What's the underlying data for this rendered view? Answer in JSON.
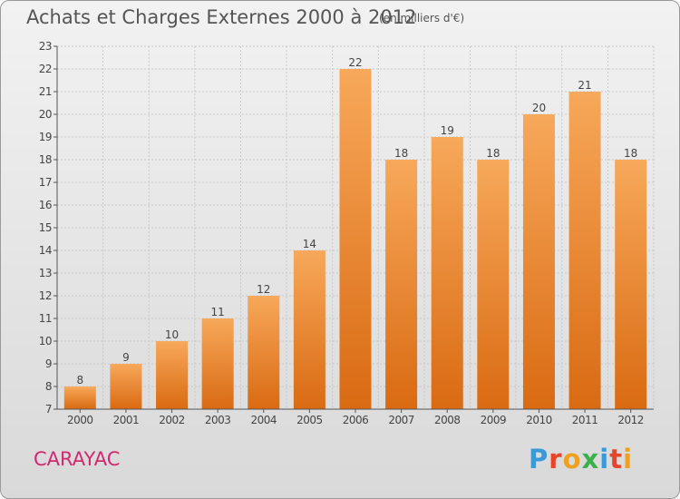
{
  "header": {
    "title": "Achats et Charges Externes 2000 à 2012",
    "subtitle": "(en milliers d'€)"
  },
  "footer": {
    "commune": "CARAYAC",
    "logo_text": "Proxiti",
    "logo_colors": [
      "#3a9ad9",
      "#e8462a",
      "#f0a020",
      "#3bb14a",
      "#3a9ad9",
      "#e8462a",
      "#f0a020"
    ]
  },
  "colors": {
    "bar_light": "#f7a85a",
    "bar_dark": "#d96a12",
    "grid": "#c8c8c8",
    "axis": "#555555",
    "commune": "#d2286f"
  },
  "chart_data": {
    "type": "bar",
    "categories": [
      "2000",
      "2001",
      "2002",
      "2003",
      "2004",
      "2005",
      "2006",
      "2007",
      "2008",
      "2009",
      "2010",
      "2011",
      "2012"
    ],
    "values": [
      8,
      9,
      10,
      11,
      12,
      14,
      22,
      18,
      19,
      18,
      20,
      21,
      18
    ],
    "title": "Achats et Charges Externes 2000 à 2012",
    "subtitle": "(en milliers d'€)",
    "ylim": [
      7,
      23
    ],
    "yticks": [
      7,
      8,
      9,
      10,
      11,
      12,
      13,
      14,
      15,
      16,
      17,
      18,
      19,
      20,
      21,
      22,
      23
    ],
    "grid": true,
    "data_labels": true
  }
}
